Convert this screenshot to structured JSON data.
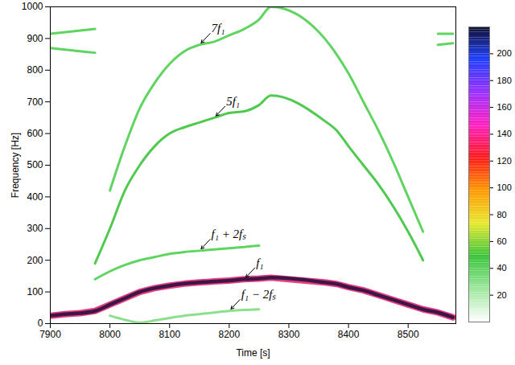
{
  "chart_data": {
    "type": "line",
    "x_label": "Time [s]",
    "y_label": "Frequency [Hz]",
    "xlim": [
      7900,
      8580
    ],
    "xticks": [
      7900,
      8000,
      8100,
      8200,
      8300,
      8400,
      8500
    ],
    "ylim": [
      0,
      1000
    ],
    "yticks": [
      0,
      100,
      200,
      300,
      400,
      500,
      600,
      700,
      800,
      900,
      1000
    ],
    "grid": false,
    "x": [
      7900,
      7925,
      7950,
      7975,
      8000,
      8025,
      8050,
      8075,
      8100,
      8125,
      8150,
      8175,
      8200,
      8225,
      8250,
      8270,
      8360,
      8380,
      8400,
      8425,
      8450,
      8475,
      8500,
      8525,
      8550,
      8575
    ],
    "series": [
      {
        "name": null,
        "color": "#4fcf4f",
        "values": [
          915,
          920,
          925,
          930,
          null,
          null,
          null,
          null,
          null,
          null,
          null,
          null,
          null,
          null,
          null,
          null,
          null,
          null,
          null,
          null,
          null,
          null,
          null,
          null,
          915,
          915
        ]
      },
      {
        "name": null,
        "color": "#4fcf4f",
        "values": [
          870,
          865,
          860,
          855,
          null,
          null,
          null,
          null,
          null,
          null,
          null,
          null,
          null,
          null,
          null,
          null,
          null,
          null,
          null,
          null,
          null,
          null,
          null,
          null,
          880,
          885
        ]
      },
      {
        "name": "7f₁",
        "color": "#4fcf4f",
        "values": [
          null,
          null,
          null,
          null,
          420,
          560,
          680,
          760,
          820,
          860,
          880,
          890,
          910,
          930,
          960,
          1000,
          900,
          850,
          790,
          700,
          610,
          510,
          400,
          290,
          null,
          null
        ]
      },
      {
        "name": "5f₁",
        "color": "#3cc43c",
        "values": [
          null,
          null,
          null,
          190,
          300,
          420,
          500,
          560,
          600,
          620,
          635,
          650,
          665,
          670,
          690,
          720,
          640,
          610,
          560,
          500,
          440,
          370,
          290,
          200,
          null,
          null
        ]
      },
      {
        "name": "f₁ + 2fₛ",
        "color": "#4fcf4f",
        "values": [
          null,
          null,
          null,
          140,
          165,
          185,
          200,
          210,
          220,
          226,
          230,
          234,
          238,
          242,
          246,
          null,
          null,
          null,
          null,
          null,
          null,
          null,
          null,
          null,
          null,
          null
        ]
      },
      {
        "name": "f₁",
        "color": "#2b1140",
        "values": [
          25,
          30,
          33,
          40,
          60,
          80,
          100,
          112,
          120,
          126,
          130,
          133,
          136,
          140,
          142,
          145,
          130,
          125,
          115,
          105,
          90,
          75,
          60,
          45,
          35,
          20
        ]
      },
      {
        "name": "f₁ − 2fₛ",
        "color": "#7fdc7f",
        "values": [
          null,
          null,
          null,
          null,
          25,
          12,
          3,
          10,
          18,
          25,
          30,
          35,
          40,
          43,
          45,
          null,
          null,
          null,
          null,
          null,
          null,
          null,
          null,
          null,
          null,
          null
        ]
      }
    ],
    "colorbar": {
      "lim": [
        0,
        220
      ],
      "ticks": [
        20,
        40,
        60,
        80,
        100,
        120,
        140,
        160,
        180,
        200
      ]
    }
  }
}
